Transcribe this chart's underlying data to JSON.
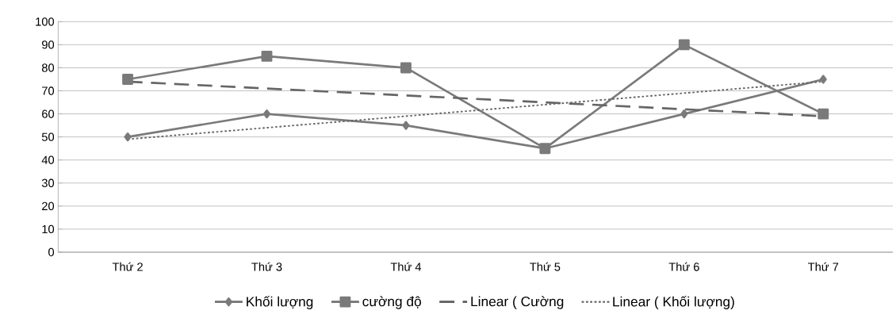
{
  "chart_data": {
    "type": "line",
    "categories": [
      "Thứ 2",
      "Thứ 3",
      "Thứ 4",
      "Thứ 5",
      "Thứ 6",
      "Thứ 7"
    ],
    "series": [
      {
        "name": "Khối lượng",
        "color": "#7a7a7a",
        "values": [
          50,
          60,
          55,
          45,
          60,
          75
        ],
        "marker": "diamond",
        "line_style": "solid"
      },
      {
        "name": "cường độ",
        "color": "#7a7a7a",
        "values": [
          75,
          85,
          80,
          45,
          90,
          60
        ],
        "marker": "square",
        "line_style": "solid"
      },
      {
        "name": "Linear ( Cường",
        "color": "#666666",
        "values": [
          74,
          71,
          68,
          65,
          62,
          59
        ],
        "marker": "none",
        "line_style": "dashed"
      },
      {
        "name": "Linear ( Khối lượng)",
        "color": "#666666",
        "values": [
          49,
          54,
          59,
          64,
          69,
          74
        ],
        "marker": "none",
        "line_style": "dotted"
      }
    ],
    "ylim": [
      0,
      100
    ],
    "yticks": [
      0,
      10,
      20,
      30,
      40,
      50,
      60,
      70,
      80,
      90,
      100
    ],
    "grid": "y",
    "legend": "bottom"
  }
}
